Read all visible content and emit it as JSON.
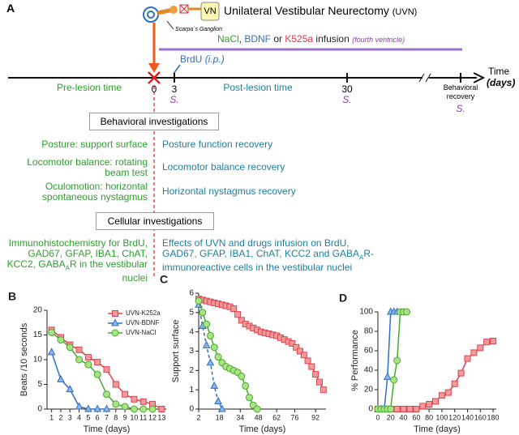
{
  "diagram": {
    "panel": "A",
    "vn": "VN",
    "title": "Unilateral Vestibular Neurectomy",
    "title_abbr": "(UVN)",
    "ganglion": "Scarpa´s Ganglion",
    "infusion": [
      {
        "text": "NaCl",
        "color": "#2e9e2e"
      },
      {
        "text": ", ",
        "color": "#222222"
      },
      {
        "text": "BDNF",
        "color": "#2f6fc0"
      },
      {
        "text": " or ",
        "color": "#222222"
      },
      {
        "text": "K525a",
        "color": "#e0304a"
      },
      {
        "text": " infusion ",
        "color": "#222222"
      },
      {
        "text": "(fourth ventricle)",
        "color": "#8a3fb0"
      }
    ],
    "brdu": "BrdU",
    "brdu_route": "(i.p.)",
    "time": "Time",
    "time_unit": "(days)",
    "pre": "Pre-lesion time",
    "post": "Post-lesion time",
    "day0": "0",
    "day3": "3",
    "day30": "30",
    "behav_recovery": "Behavioral recovery",
    "s1": "S.",
    "s2": "S.",
    "s3": "S.",
    "behavioral_box": "Behavioral investigations",
    "behavioral_rows": [
      {
        "left": "Posture: support surface",
        "right": "Posture function recovery"
      },
      {
        "left": "Locomotor balance: rotating beam test",
        "right": "Locomotor balance recovery"
      },
      {
        "left": "Oculomotion: horizontal spontaneous nystagmus",
        "right": "Horizontal nystagmus recovery"
      }
    ],
    "cellular_box": "Cellular investigations",
    "cellular_left": [
      "Immunohistochemistry for BrdU, GAD67, GFAP, IBA1, ChAT, KCC2, GABA",
      "A",
      "R in the vestibular nuclei"
    ],
    "cellular_right": [
      "Effects of UVN and drugs infusion on BrdU, GAD67, GFAP, IBA1, ChAT, KCC2 and GABA",
      "A",
      "R-immunoreactive cells in the vestibular nuclei"
    ]
  },
  "chart_data": [
    {
      "type": "line",
      "panel": "B",
      "ylabel": "Beats /10 seconds",
      "xlabel": "Time (days)",
      "xlim": [
        0.5,
        13.5
      ],
      "xticks": [
        1,
        2,
        3,
        4,
        5,
        6,
        7,
        8,
        9,
        10,
        11,
        12,
        13
      ],
      "ylim": [
        0,
        20
      ],
      "yticks": [
        0,
        5,
        10,
        15,
        20
      ],
      "legend": "top-right",
      "series": [
        {
          "name": "UVN-K252a",
          "color": "#e0404f",
          "fill": "#f29a9a",
          "marker": "square",
          "dash": false,
          "x": [
            1,
            2,
            3,
            4,
            5,
            6,
            7,
            8,
            9,
            10,
            11,
            12,
            13
          ],
          "values": [
            16,
            14.5,
            13,
            12,
            10.5,
            9.5,
            8,
            5,
            3,
            2,
            1.5,
            1,
            0
          ]
        },
        {
          "name": "UVN-BDNF",
          "color": "#2f6fc0",
          "fill": "#8fb6ea",
          "marker": "triangle",
          "dash": false,
          "x": [
            1,
            2,
            3,
            4,
            5,
            6,
            7
          ],
          "values": [
            11.5,
            6,
            4,
            0.5,
            0,
            0,
            0
          ]
        },
        {
          "name": "UVN-NaCl",
          "color": "#48a82c",
          "fill": "#a8e486",
          "marker": "circle",
          "dash": false,
          "x": [
            1,
            2,
            3,
            4,
            5,
            6,
            7,
            8,
            9,
            10,
            11,
            12
          ],
          "values": [
            15.5,
            14,
            12.5,
            10,
            9,
            7,
            3,
            1,
            0.5,
            0,
            0,
            0
          ]
        }
      ]
    },
    {
      "type": "line",
      "panel": "C",
      "ylabel": "Support surface",
      "xlabel": "Time (days)",
      "xlim": [
        2,
        100
      ],
      "xticks": [
        2,
        18,
        34,
        48,
        62,
        76,
        92
      ],
      "ylim": [
        0,
        6
      ],
      "yticks": [
        0,
        1,
        2,
        3,
        4,
        5,
        6
      ],
      "series": [
        {
          "color": "#e0404f",
          "fill": "#f29a9a",
          "marker": "square",
          "dash": false,
          "x": [
            2,
            5,
            8,
            11,
            14,
            17,
            20,
            23,
            26,
            29,
            32,
            35,
            38,
            41,
            44,
            47,
            50,
            53,
            56,
            59,
            62,
            65,
            68,
            71,
            74,
            77,
            80,
            83,
            86,
            89,
            92,
            95,
            98
          ],
          "values": [
            5.7,
            5.65,
            5.6,
            5.55,
            5.5,
            5.45,
            5.4,
            5.35,
            5.3,
            5.2,
            4.9,
            4.6,
            4.4,
            4.3,
            4.2,
            4.1,
            4.0,
            3.95,
            3.9,
            3.85,
            3.8,
            3.7,
            3.6,
            3.5,
            3.4,
            3.2,
            3.0,
            2.8,
            2.5,
            2.2,
            1.8,
            1.4,
            1.0
          ]
        },
        {
          "color": "#2f6fc0",
          "fill": "#8fb6ea",
          "marker": "triangle",
          "dash": true,
          "x": [
            2,
            5,
            8,
            11,
            14,
            17,
            20
          ],
          "values": [
            5.4,
            4.3,
            3.3,
            2.4,
            1.2,
            0.4,
            0
          ]
        },
        {
          "color": "#48a82c",
          "fill": "#a8e486",
          "marker": "circle",
          "dash": false,
          "x": [
            2,
            5,
            8,
            11,
            14,
            17,
            20,
            23,
            26,
            29,
            32,
            35,
            38,
            41,
            44,
            47
          ],
          "values": [
            5.6,
            5.0,
            4.4,
            3.8,
            3.2,
            2.7,
            2.4,
            2.2,
            2.1,
            2.0,
            1.9,
            1.7,
            1.2,
            0.6,
            0.2,
            0
          ]
        }
      ]
    },
    {
      "type": "line",
      "panel": "D",
      "ylabel": "% Performance",
      "xlabel": "Time (days)",
      "xlim": [
        0,
        185
      ],
      "xticks": [
        0,
        20,
        40,
        60,
        80,
        100,
        120,
        140,
        160,
        180
      ],
      "ylim": [
        0,
        100
      ],
      "yticks": [
        0,
        20,
        40,
        60,
        80,
        100
      ],
      "series": [
        {
          "color": "#e0404f",
          "fill": "#f29a9a",
          "marker": "square",
          "dash": false,
          "x": [
            0,
            10,
            20,
            30,
            40,
            50,
            60,
            70,
            80,
            90,
            100,
            110,
            120,
            130,
            140,
            150,
            160,
            170,
            180
          ],
          "values": [
            0,
            0,
            0,
            0,
            0,
            0,
            0,
            3,
            5,
            8,
            14,
            17,
            26,
            37,
            52,
            58,
            63,
            69,
            70
          ]
        },
        {
          "color": "#2f6fc0",
          "fill": "#8fb6ea",
          "marker": "triangle",
          "dash": false,
          "x": [
            0,
            5,
            10,
            15,
            20,
            25,
            30
          ],
          "values": [
            0,
            0,
            0,
            33,
            100,
            100,
            100
          ]
        },
        {
          "color": "#48a82c",
          "fill": "#a8e486",
          "marker": "circle",
          "dash": false,
          "x": [
            0,
            5,
            10,
            15,
            20,
            25,
            30,
            35,
            40,
            45
          ],
          "values": [
            0,
            0,
            0,
            0,
            0,
            30,
            50,
            100,
            100,
            100
          ]
        }
      ]
    }
  ]
}
